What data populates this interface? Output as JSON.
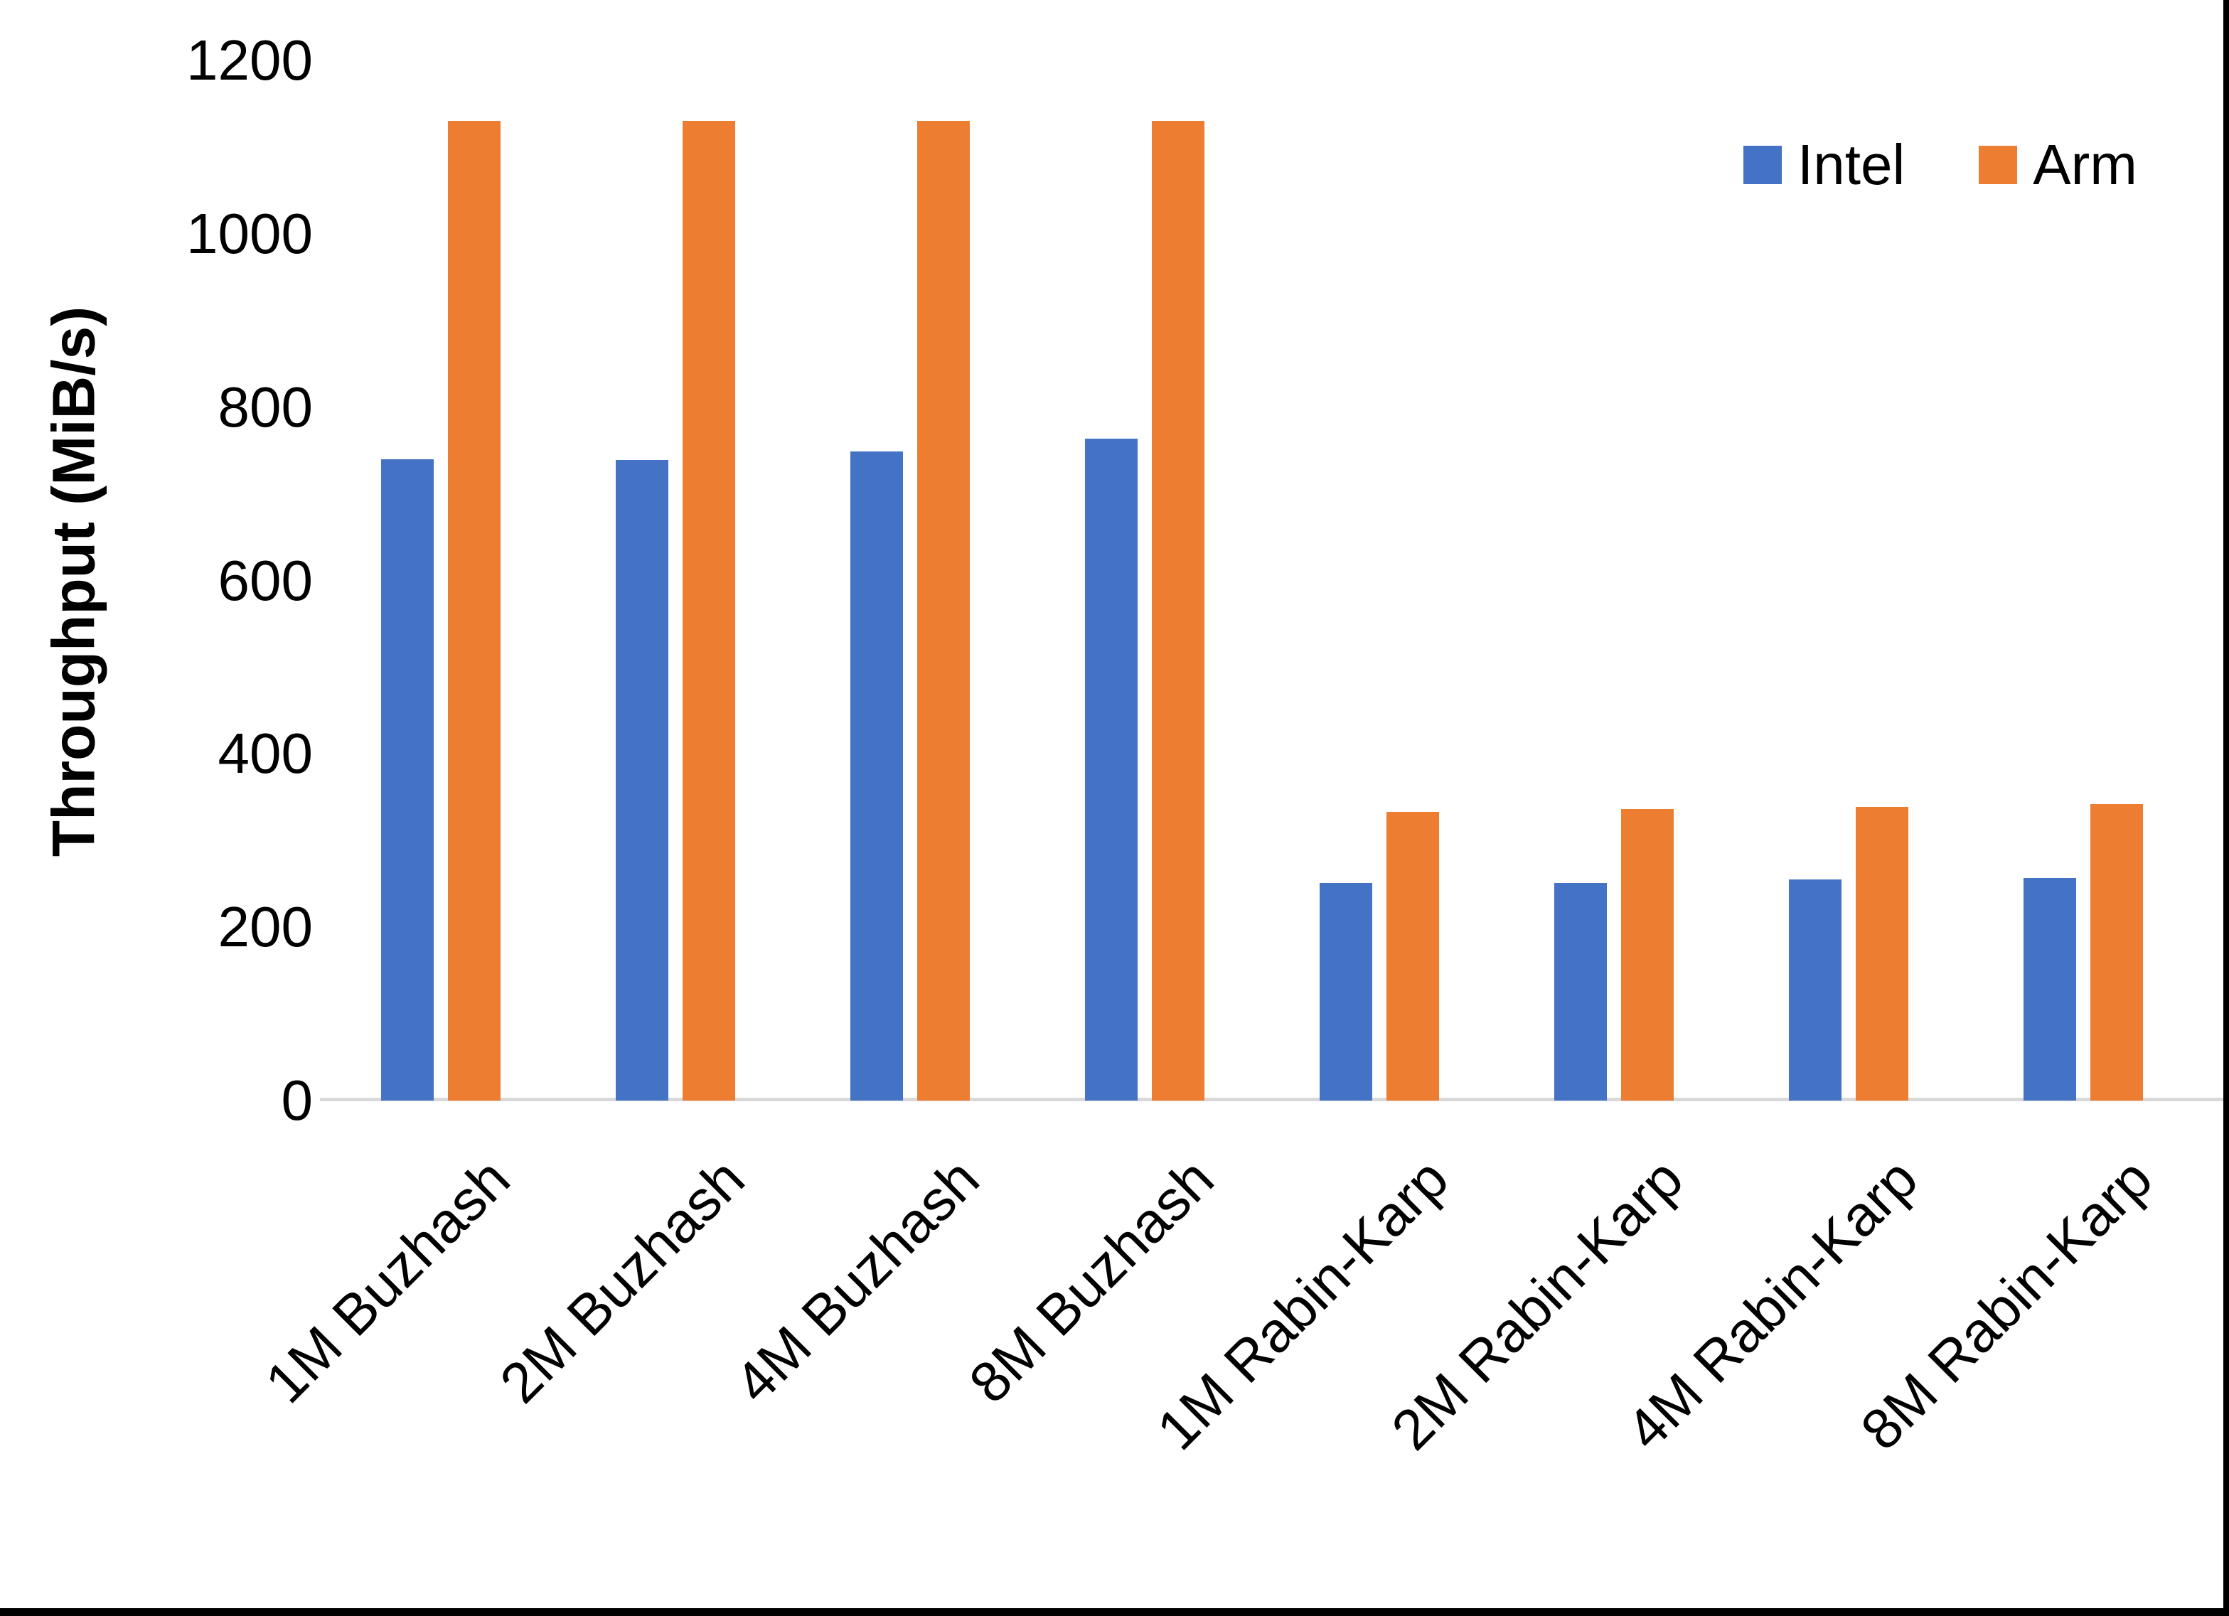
{
  "chart_data": {
    "type": "bar",
    "title": "",
    "xlabel": "",
    "ylabel": "Throughput (MiB/s)",
    "ylim": [
      0,
      1200
    ],
    "yticks": [
      0,
      200,
      400,
      600,
      800,
      1000,
      1200
    ],
    "grid": false,
    "legend_position": "top-right",
    "axis_line_color": "#d9d9d9",
    "categories": [
      "1M Buzhash",
      "2M Buzhash",
      "4M Buzhash",
      "8M Buzhash",
      "1M Rabin-Karp",
      "2M Rabin-Karp",
      "4M Rabin-Karp",
      "8M Rabin-Karp"
    ],
    "series": [
      {
        "name": "Intel",
        "color": "#4472C4",
        "values": [
          740,
          739,
          749,
          764,
          251,
          251,
          255,
          257
        ]
      },
      {
        "name": "Arm",
        "color": "#ED7D31",
        "values": [
          1130,
          1130,
          1130,
          1130,
          333,
          336,
          339,
          342
        ]
      }
    ]
  },
  "frame": {
    "border_color": "#000000"
  }
}
